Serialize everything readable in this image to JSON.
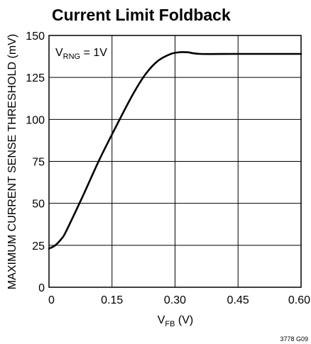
{
  "chart_data": {
    "type": "line",
    "title": "Current Limit Foldback",
    "xlabel": {
      "main": "V",
      "sub": "FB",
      "tail": " (V)"
    },
    "ylabel": "MAXIMUM CURRENT SENSE THRESHOLD (mV)",
    "xlim": [
      0,
      0.6
    ],
    "ylim": [
      0,
      150
    ],
    "x_ticks": [
      0,
      0.15,
      0.3,
      0.45,
      0.6
    ],
    "x_tick_labels": [
      "0",
      "0.15",
      "0.30",
      "0.45",
      "0.60"
    ],
    "y_ticks": [
      0,
      25,
      50,
      75,
      100,
      125,
      150
    ],
    "y_tick_labels": [
      "0",
      "25",
      "50",
      "75",
      "100",
      "125",
      "150"
    ],
    "grid": true,
    "annotation": {
      "main": "V",
      "sub": "RNG",
      "tail": " = 1V"
    },
    "figure_id": "3778 G09",
    "series": [
      {
        "values": [
          [
            0.0,
            23
          ],
          [
            0.015,
            25
          ],
          [
            0.03,
            29
          ],
          [
            0.04,
            33
          ],
          [
            0.08,
            54
          ],
          [
            0.12,
            76
          ],
          [
            0.16,
            96
          ],
          [
            0.2,
            115
          ],
          [
            0.23,
            127
          ],
          [
            0.26,
            135
          ],
          [
            0.29,
            139
          ],
          [
            0.31,
            140
          ],
          [
            0.33,
            140
          ],
          [
            0.36,
            139
          ],
          [
            0.45,
            139
          ],
          [
            0.6,
            139
          ]
        ]
      }
    ]
  }
}
